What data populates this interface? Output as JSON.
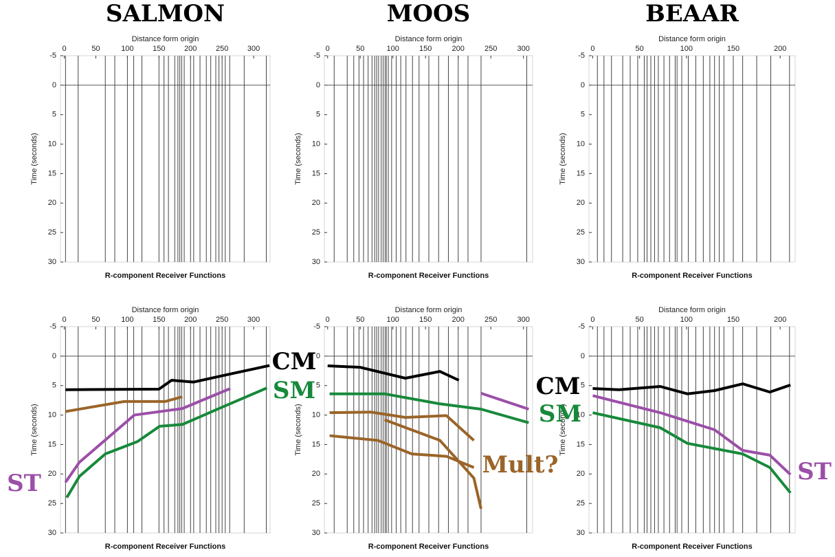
{
  "chart_data": [
    {
      "type": "line",
      "title": "SALMON",
      "x_label": "Distance form origin",
      "y_label": "Time (seconds)",
      "footer": "R-component Receiver Functions",
      "xlim": [
        -6,
        326
      ],
      "xticks": [
        0,
        50,
        100,
        150,
        200,
        250,
        300
      ],
      "ylim": [
        -5,
        30
      ],
      "yticks": [
        -5,
        0,
        5,
        10,
        15,
        20,
        25,
        30
      ],
      "y_reversed": true,
      "zero_line": true,
      "trace_color": "#444444",
      "stations": [
        2,
        22,
        65,
        80,
        100,
        110,
        123,
        150,
        158,
        165,
        175,
        180,
        183,
        186,
        190,
        200,
        205,
        215,
        225,
        232,
        240,
        245,
        250,
        255,
        262,
        285,
        320
      ],
      "series": []
    },
    {
      "type": "line",
      "title": "MOOS",
      "x_label": "Distance form origin",
      "y_label": "Time (seconds)",
      "footer": "R-component Receiver Functions",
      "xlim": [
        -5,
        314
      ],
      "xticks": [
        0,
        50,
        100,
        150,
        200,
        250,
        300
      ],
      "ylim": [
        -5,
        30
      ],
      "yticks": [
        -5,
        0,
        5,
        10,
        15,
        20,
        25,
        30
      ],
      "y_reversed": true,
      "zero_line": true,
      "trace_color": "#444444",
      "stations": [
        10,
        30,
        40,
        48,
        55,
        62,
        68,
        72,
        75,
        78,
        82,
        85,
        88,
        90,
        93,
        98,
        105,
        112,
        120,
        130,
        140,
        155,
        170,
        185,
        200,
        215,
        235,
        305
      ],
      "series": []
    },
    {
      "type": "line",
      "title": "BEAAR",
      "x_label": "Distance form origin",
      "y_label": "Time (seconds)",
      "footer": "R-component Receiver Functions",
      "xlim": [
        -4,
        216
      ],
      "xticks": [
        0,
        50,
        100,
        150,
        200
      ],
      "ylim": [
        -5,
        30
      ],
      "yticks": [
        -5,
        0,
        5,
        10,
        15,
        20,
        25,
        30
      ],
      "y_reversed": true,
      "zero_line": true,
      "trace_color": "#444444",
      "stations": [
        5,
        12,
        20,
        32,
        40,
        48,
        55,
        58,
        62,
        66,
        70,
        76,
        82,
        88,
        90,
        95,
        102,
        110,
        118,
        125,
        130,
        135,
        140,
        150,
        160,
        175,
        190,
        210
      ],
      "series": []
    },
    {
      "type": "line",
      "x_label": "Distance form origin",
      "y_label": "Time (seconds)",
      "footer": "R-component Receiver Functions",
      "xlim": [
        -6,
        326
      ],
      "xticks": [
        0,
        50,
        100,
        150,
        200,
        250,
        300
      ],
      "ylim": [
        -5,
        30
      ],
      "yticks": [
        -5,
        0,
        5,
        10,
        15,
        20,
        25,
        30
      ],
      "y_reversed": true,
      "zero_line": true,
      "trace_color": "#444444",
      "stations": [
        2,
        22,
        65,
        80,
        100,
        110,
        123,
        150,
        158,
        165,
        175,
        180,
        183,
        186,
        190,
        200,
        205,
        215,
        225,
        232,
        240,
        245,
        250,
        255,
        262,
        285,
        320
      ],
      "series": [
        {
          "name": "CM",
          "color": "#000000",
          "x": [
            2,
            150,
            170,
            205,
            260,
            325
          ],
          "values": [
            5.7,
            5.6,
            4.1,
            4.4,
            3.1,
            1.6
          ]
        },
        {
          "color": "#9a6428",
          "x": [
            2,
            95,
            160,
            187
          ],
          "values": [
            9.4,
            7.7,
            7.7,
            6.9
          ]
        },
        {
          "name": "ST",
          "color": "#9b4fa8",
          "x": [
            2,
            24,
            111,
            187,
            263
          ],
          "values": [
            21.4,
            18,
            10,
            8.9,
            5.5
          ]
        },
        {
          "name": "SM",
          "color": "#17893a",
          "x": [
            4,
            24,
            65,
            116,
            151,
            187,
            247,
            321
          ],
          "values": [
            24,
            20.4,
            16.6,
            14.5,
            11.9,
            11.6,
            8.8,
            5.4
          ]
        }
      ]
    },
    {
      "type": "line",
      "x_label": "Distance form origin",
      "y_label": "Time (seconds)",
      "footer": "R-component Receiver Functions",
      "xlim": [
        -5,
        314
      ],
      "xticks": [
        0,
        50,
        100,
        150,
        200,
        250,
        300
      ],
      "ylim": [
        -5,
        30
      ],
      "yticks": [
        -5,
        0,
        5,
        10,
        15,
        20,
        25,
        30
      ],
      "y_reversed": true,
      "zero_line": true,
      "trace_color": "#444444",
      "stations": [
        10,
        30,
        40,
        48,
        55,
        62,
        68,
        72,
        75,
        78,
        82,
        85,
        88,
        90,
        93,
        98,
        105,
        112,
        120,
        130,
        140,
        155,
        170,
        185,
        200,
        215,
        235,
        305
      ],
      "series": [
        {
          "color": "#000000",
          "x": [
            0,
            50,
            119,
            172,
            201
          ],
          "values": [
            1.65,
            1.9,
            3.75,
            2.6,
            4.1
          ]
        },
        {
          "color": "#9b4fa8",
          "x": [
            235,
            308
          ],
          "values": [
            6.3,
            9
          ]
        },
        {
          "color": "#17893a",
          "x": [
            3,
            87,
            172,
            235,
            308
          ],
          "values": [
            6.4,
            6.4,
            8.1,
            9,
            11.3
          ]
        },
        {
          "color": "#9a6428",
          "x": [
            3,
            66,
            119,
            182,
            224
          ],
          "values": [
            9.6,
            9.5,
            10.4,
            10.1,
            14.3
          ]
        },
        {
          "name": "Mult?",
          "color": "#9a6428",
          "x": [
            3,
            77,
            129,
            182,
            224
          ],
          "values": [
            13.5,
            14.3,
            16.6,
            17,
            18.9
          ]
        },
        {
          "color": "#9a6428",
          "x": [
            87,
            172,
            224,
            235
          ],
          "values": [
            10.8,
            14.3,
            20.7,
            25.9
          ]
        }
      ]
    },
    {
      "type": "line",
      "x_label": "Distance form origin",
      "y_label": "Time (seconds)",
      "footer": "R-component Receiver Functions",
      "xlim": [
        -4,
        216
      ],
      "xticks": [
        0,
        50,
        100,
        150,
        200
      ],
      "ylim": [
        -5,
        30
      ],
      "yticks": [
        -5,
        0,
        5,
        10,
        15,
        20,
        25,
        30
      ],
      "y_reversed": true,
      "zero_line": true,
      "trace_color": "#444444",
      "stations": [
        5,
        12,
        20,
        32,
        40,
        48,
        55,
        58,
        62,
        66,
        70,
        76,
        82,
        88,
        90,
        95,
        102,
        110,
        118,
        125,
        130,
        135,
        140,
        150,
        160,
        175,
        190,
        210
      ],
      "series": [
        {
          "name": "CM",
          "color": "#000000",
          "x": [
            0,
            28,
            72,
            101,
            130,
            160,
            189,
            211
          ],
          "values": [
            5.5,
            5.7,
            5.15,
            6.4,
            5.85,
            4.7,
            6.1,
            4.9
          ]
        },
        {
          "name": "ST",
          "color": "#9b4fa8",
          "x": [
            0,
            72,
            130,
            160,
            189,
            211
          ],
          "values": [
            6.7,
            9.6,
            12.5,
            16,
            16.8,
            20.1
          ]
        },
        {
          "name": "SM",
          "color": "#17893a",
          "x": [
            0,
            72,
            101,
            160,
            189,
            211
          ],
          "values": [
            9.6,
            12.15,
            14.8,
            16.6,
            18.9,
            23.2
          ]
        }
      ]
    }
  ]
}
